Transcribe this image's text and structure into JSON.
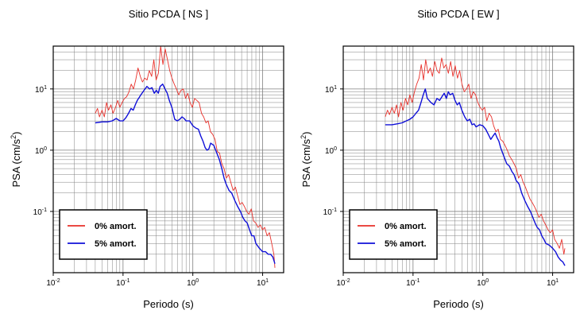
{
  "colors": {
    "undamped": "#e8302a",
    "damped": "#1010d8",
    "grid": "#808080",
    "frame": "#000000"
  },
  "chart_data": [
    {
      "type": "line",
      "title": "Sitio PCDA [ NS ]",
      "xlabel": "Periodo (s)",
      "ylabel_main": "PSA (cm/s",
      "ylabel_sup": "2",
      "ylabel_tail": ")",
      "x_scale": "log",
      "y_scale": "log",
      "xlim": [
        0.01,
        20
      ],
      "ylim": [
        0.01,
        50
      ],
      "grid": true,
      "legend_position": "bottom-left",
      "x_ticks": [
        {
          "value": 0.01,
          "base": "10",
          "exp": "-2"
        },
        {
          "value": 0.1,
          "base": "10",
          "exp": "-1"
        },
        {
          "value": 1,
          "base": "10",
          "exp": "0"
        },
        {
          "value": 10,
          "base": "10",
          "exp": "1"
        }
      ],
      "y_ticks": [
        {
          "value": 0.1,
          "base": "10",
          "exp": "-1"
        },
        {
          "value": 1,
          "base": "10",
          "exp": "0"
        },
        {
          "value": 10,
          "base": "10",
          "exp": "1"
        }
      ],
      "series": [
        {
          "name": "0% amort.",
          "color": "#e8302a",
          "x": [
            0.04,
            0.043,
            0.046,
            0.05,
            0.054,
            0.058,
            0.062,
            0.067,
            0.072,
            0.078,
            0.084,
            0.09,
            0.097,
            0.105,
            0.113,
            0.122,
            0.131,
            0.141,
            0.152,
            0.164,
            0.177,
            0.19,
            0.205,
            0.221,
            0.238,
            0.257,
            0.276,
            0.298,
            0.321,
            0.346,
            0.373,
            0.402,
            0.433,
            0.466,
            0.502,
            0.541,
            0.583,
            0.629,
            0.677,
            0.73,
            0.787,
            0.848,
            0.913,
            0.984,
            1.06,
            1.14,
            1.23,
            1.33,
            1.43,
            1.54,
            1.66,
            1.79,
            1.93,
            2.08,
            2.24,
            2.41,
            2.6,
            2.8,
            3.02,
            3.25,
            3.5,
            3.78,
            4.07,
            4.39,
            4.73,
            5.09,
            5.49,
            5.91,
            6.37,
            6.87,
            7.4,
            7.97,
            8.59,
            9.26,
            9.98,
            10.7,
            11.6,
            12.5,
            13.5,
            14.5,
            15.0
          ],
          "y": [
            4.0,
            4.8,
            3.5,
            4.5,
            3.5,
            6.0,
            4.5,
            5.5,
            4.0,
            5.0,
            6.5,
            5.0,
            6.0,
            7.0,
            7.5,
            9.0,
            12.0,
            10.0,
            14.0,
            22.0,
            16.0,
            13.0,
            15.0,
            14.0,
            20.0,
            16.0,
            30.0,
            14.0,
            18.0,
            50.0,
            25.0,
            45.0,
            30.0,
            20.0,
            15.0,
            12.0,
            10.0,
            8.0,
            9.5,
            10.0,
            7.0,
            8.5,
            6.0,
            5.0,
            7.0,
            6.5,
            6.0,
            4.0,
            3.5,
            2.8,
            3.0,
            2.0,
            1.8,
            1.5,
            0.95,
            0.9,
            0.6,
            0.5,
            0.35,
            0.4,
            0.3,
            0.22,
            0.25,
            0.18,
            0.13,
            0.14,
            0.12,
            0.1,
            0.09,
            0.11,
            0.07,
            0.065,
            0.055,
            0.06,
            0.05,
            0.055,
            0.04,
            0.045,
            0.03,
            0.02,
            0.012
          ]
        },
        {
          "name": "5% amort.",
          "color": "#1010d8",
          "x": [
            0.04,
            0.05,
            0.06,
            0.07,
            0.08,
            0.09,
            0.1,
            0.11,
            0.12,
            0.13,
            0.14,
            0.15,
            0.16,
            0.17,
            0.18,
            0.2,
            0.22,
            0.24,
            0.26,
            0.28,
            0.3,
            0.32,
            0.34,
            0.37,
            0.4,
            0.43,
            0.46,
            0.5,
            0.55,
            0.6,
            0.65,
            0.7,
            0.75,
            0.8,
            0.9,
            1.0,
            1.1,
            1.2,
            1.3,
            1.4,
            1.5,
            1.6,
            1.7,
            1.8,
            2.0,
            2.2,
            2.4,
            2.6,
            2.8,
            3.0,
            3.3,
            3.6,
            4.0,
            4.4,
            4.8,
            5.2,
            5.6,
            6.0,
            6.5,
            7.0,
            7.5,
            8.0,
            9.0,
            10.0,
            11.0,
            12.0,
            13.0,
            14.0,
            15.0
          ],
          "y": [
            2.8,
            2.9,
            2.9,
            3.0,
            3.3,
            3.0,
            3.0,
            3.4,
            4.0,
            4.8,
            4.5,
            5.5,
            6.5,
            7.2,
            8.0,
            9.5,
            11.0,
            10.0,
            10.5,
            8.5,
            9.5,
            8.5,
            11.0,
            12.0,
            10.0,
            8.5,
            6.5,
            5.0,
            3.2,
            3.0,
            3.2,
            3.5,
            3.3,
            3.0,
            3.0,
            2.5,
            2.3,
            2.2,
            1.7,
            1.4,
            1.1,
            1.0,
            1.05,
            1.3,
            1.2,
            0.9,
            0.7,
            0.5,
            0.35,
            0.28,
            0.22,
            0.2,
            0.15,
            0.12,
            0.1,
            0.08,
            0.07,
            0.065,
            0.05,
            0.04,
            0.04,
            0.03,
            0.025,
            0.022,
            0.022,
            0.02,
            0.02,
            0.018,
            0.014
          ]
        }
      ]
    },
    {
      "type": "line",
      "title": "Sitio PCDA [ EW ]",
      "xlabel": "Periodo (s)",
      "ylabel_main": "PSA (cm/s",
      "ylabel_sup": "2",
      "ylabel_tail": ")",
      "x_scale": "log",
      "y_scale": "log",
      "xlim": [
        0.01,
        20
      ],
      "ylim": [
        0.01,
        50
      ],
      "grid": true,
      "legend_position": "bottom-left",
      "x_ticks": [
        {
          "value": 0.01,
          "base": "10",
          "exp": "-2"
        },
        {
          "value": 0.1,
          "base": "10",
          "exp": "-1"
        },
        {
          "value": 1,
          "base": "10",
          "exp": "0"
        },
        {
          "value": 10,
          "base": "10",
          "exp": "1"
        }
      ],
      "y_ticks": [
        {
          "value": 0.1,
          "base": "10",
          "exp": "-1"
        },
        {
          "value": 1,
          "base": "10",
          "exp": "0"
        },
        {
          "value": 10,
          "base": "10",
          "exp": "1"
        }
      ],
      "series": [
        {
          "name": "0% amort.",
          "color": "#e8302a",
          "x": [
            0.04,
            0.043,
            0.046,
            0.05,
            0.054,
            0.058,
            0.062,
            0.067,
            0.072,
            0.078,
            0.084,
            0.09,
            0.097,
            0.105,
            0.113,
            0.122,
            0.131,
            0.141,
            0.152,
            0.164,
            0.177,
            0.19,
            0.205,
            0.221,
            0.238,
            0.257,
            0.276,
            0.298,
            0.321,
            0.346,
            0.373,
            0.402,
            0.433,
            0.466,
            0.502,
            0.541,
            0.583,
            0.629,
            0.677,
            0.73,
            0.787,
            0.848,
            0.913,
            0.984,
            1.06,
            1.14,
            1.23,
            1.33,
            1.43,
            1.54,
            1.66,
            1.79,
            1.93,
            2.08,
            2.24,
            2.41,
            2.6,
            2.8,
            3.02,
            3.25,
            3.5,
            3.78,
            4.07,
            4.39,
            4.73,
            5.09,
            5.49,
            5.91,
            6.37,
            6.87,
            7.4,
            7.97,
            8.59,
            9.26,
            9.98,
            10.7,
            11.6,
            12.5,
            13.5,
            14.5,
            15.0
          ],
          "y": [
            3.5,
            4.5,
            3.8,
            5.0,
            4.0,
            5.5,
            3.5,
            6.0,
            4.5,
            7.0,
            5.5,
            8.0,
            6.0,
            9.0,
            12.0,
            15.0,
            25.0,
            14.0,
            30.0,
            18.0,
            22.0,
            16.0,
            28.0,
            20.0,
            18.0,
            32.0,
            22.0,
            25.0,
            18.0,
            28.0,
            16.0,
            24.0,
            15.0,
            20.0,
            12.0,
            9.0,
            10.0,
            12.0,
            7.0,
            9.0,
            8.0,
            6.0,
            5.0,
            4.5,
            5.0,
            3.0,
            4.0,
            3.5,
            2.5,
            2.0,
            2.2,
            1.5,
            1.4,
            1.2,
            1.0,
            0.8,
            0.7,
            0.6,
            0.5,
            0.35,
            0.4,
            0.3,
            0.25,
            0.2,
            0.16,
            0.14,
            0.12,
            0.1,
            0.08,
            0.09,
            0.07,
            0.06,
            0.05,
            0.045,
            0.05,
            0.035,
            0.03,
            0.025,
            0.035,
            0.02,
            0.025
          ]
        },
        {
          "name": "5% amort.",
          "color": "#1010d8",
          "x": [
            0.04,
            0.05,
            0.06,
            0.07,
            0.08,
            0.09,
            0.1,
            0.11,
            0.12,
            0.13,
            0.14,
            0.15,
            0.16,
            0.17,
            0.18,
            0.2,
            0.22,
            0.24,
            0.26,
            0.28,
            0.3,
            0.32,
            0.34,
            0.37,
            0.4,
            0.43,
            0.46,
            0.5,
            0.55,
            0.6,
            0.65,
            0.7,
            0.75,
            0.8,
            0.9,
            1.0,
            1.1,
            1.2,
            1.3,
            1.4,
            1.5,
            1.6,
            1.7,
            1.8,
            2.0,
            2.2,
            2.4,
            2.6,
            2.8,
            3.0,
            3.3,
            3.6,
            4.0,
            4.4,
            4.8,
            5.2,
            5.6,
            6.0,
            6.5,
            7.0,
            7.5,
            8.0,
            9.0,
            10.0,
            11.0,
            12.0,
            13.0,
            14.0,
            15.0
          ],
          "y": [
            2.6,
            2.6,
            2.7,
            2.8,
            3.0,
            3.2,
            3.5,
            4.0,
            4.5,
            6.0,
            8.0,
            10.0,
            7.0,
            6.5,
            6.0,
            5.5,
            7.0,
            6.5,
            7.5,
            8.5,
            7.0,
            9.0,
            8.0,
            8.5,
            6.5,
            5.5,
            6.0,
            4.5,
            3.5,
            3.0,
            3.2,
            2.6,
            2.7,
            2.4,
            2.6,
            2.5,
            2.2,
            1.8,
            1.5,
            1.7,
            1.9,
            1.6,
            1.4,
            1.1,
            0.8,
            0.6,
            0.55,
            0.45,
            0.4,
            0.32,
            0.28,
            0.2,
            0.15,
            0.12,
            0.1,
            0.08,
            0.065,
            0.055,
            0.05,
            0.04,
            0.035,
            0.03,
            0.028,
            0.025,
            0.022,
            0.018,
            0.016,
            0.015,
            0.013
          ]
        }
      ]
    }
  ]
}
